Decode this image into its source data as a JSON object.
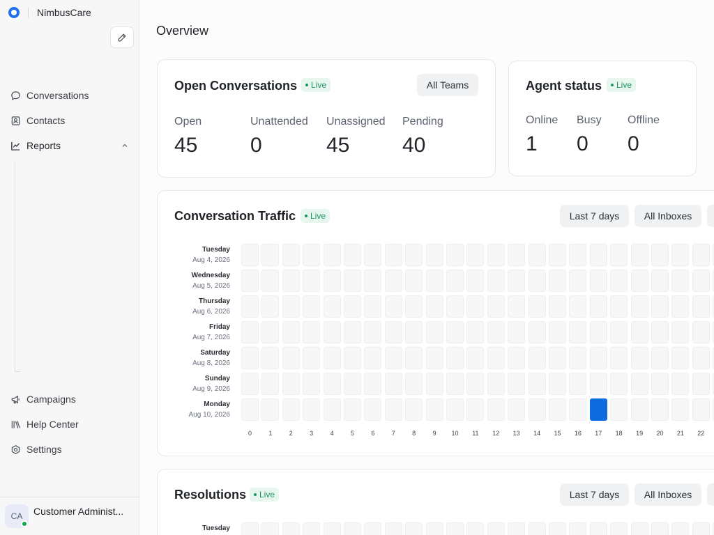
{
  "brand": {
    "name": "NimbusCare"
  },
  "sidebar": {
    "items": [
      {
        "label": "Conversations",
        "icon": "chat-bubble-icon"
      },
      {
        "label": "Contacts",
        "icon": "contact-card-icon"
      },
      {
        "label": "Reports",
        "icon": "line-chart-icon"
      }
    ],
    "bottom_items": [
      {
        "label": "Campaigns",
        "icon": "megaphone-icon"
      },
      {
        "label": "Help Center",
        "icon": "books-icon"
      },
      {
        "label": "Settings",
        "icon": "gear-icon"
      }
    ],
    "user": {
      "initials": "CA",
      "name": "Customer Administ..."
    }
  },
  "page": {
    "title": "Overview"
  },
  "open_conversations": {
    "title": "Open Conversations",
    "live": "Live",
    "filter": "All Teams",
    "metrics": [
      {
        "label": "Open",
        "value": "45"
      },
      {
        "label": "Unattended",
        "value": "0"
      },
      {
        "label": "Unassigned",
        "value": "45"
      },
      {
        "label": "Pending",
        "value": "40"
      }
    ]
  },
  "agent_status": {
    "title": "Agent status",
    "live": "Live",
    "metrics": [
      {
        "label": "Online",
        "value": "1"
      },
      {
        "label": "Busy",
        "value": "0"
      },
      {
        "label": "Offline",
        "value": "0"
      }
    ]
  },
  "traffic": {
    "title": "Conversation Traffic",
    "live": "Live",
    "range": "Last 7 days",
    "inbox": "All Inboxes",
    "days": [
      {
        "day": "Tuesday",
        "date": "Aug 4, 2026"
      },
      {
        "day": "Wednesday",
        "date": "Aug 5, 2026"
      },
      {
        "day": "Thursday",
        "date": "Aug 6, 2026"
      },
      {
        "day": "Friday",
        "date": "Aug 7, 2026"
      },
      {
        "day": "Saturday",
        "date": "Aug 8, 2026"
      },
      {
        "day": "Sunday",
        "date": "Aug 9, 2026"
      },
      {
        "day": "Monday",
        "date": "Aug 10, 2026"
      }
    ],
    "hours": [
      "0",
      "1",
      "2",
      "3",
      "4",
      "5",
      "6",
      "7",
      "8",
      "9",
      "10",
      "11",
      "12",
      "13",
      "14",
      "15",
      "16",
      "17",
      "18",
      "19",
      "20",
      "21",
      "22"
    ],
    "highlight": {
      "day_index": 6,
      "hour": 17
    }
  },
  "resolutions": {
    "title": "Resolutions",
    "live": "Live",
    "range": "Last 7 days",
    "inbox": "All Inboxes",
    "first_day": "Tuesday"
  },
  "colors": {
    "accent": "#0f6adf",
    "live_bg": "#e7f7ef",
    "live_text": "#1a9562"
  }
}
